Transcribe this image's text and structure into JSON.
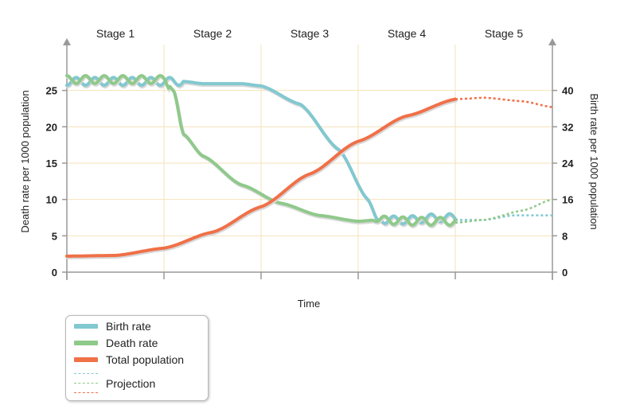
{
  "chart_data": {
    "type": "line",
    "stages": [
      "Stage 1",
      "Stage 2",
      "Stage 3",
      "Stage 4",
      "Stage 5"
    ],
    "xlabel": "Time",
    "ylabel_left": "Death rate per 1000 population",
    "ylabel_right": "Birth rate per 1000 population",
    "left_ticks": [
      "0",
      "5",
      "10",
      "15",
      "20",
      "25"
    ],
    "right_ticks": [
      "0",
      "8",
      "16",
      "24",
      "32",
      "40"
    ],
    "ylim_left": [
      0,
      30
    ],
    "ylim_right": [
      0,
      48
    ],
    "xlim": [
      0,
      5
    ],
    "grid": "vertical stage dividers and horizontal gridlines",
    "series": [
      {
        "name": "Birth rate",
        "axis": "right",
        "color": "#82c8d0",
        "wavy_until": 1.2,
        "x": [
          0,
          0.5,
          1,
          1.2,
          1.4,
          1.8,
          2.0,
          2.4,
          2.8,
          3.1,
          3.2,
          3.5,
          3.8,
          4.0
        ],
        "values": [
          42,
          42,
          42,
          42,
          41.5,
          41.5,
          41,
          37,
          27,
          16,
          11.5,
          11.5,
          12,
          12
        ],
        "wavy_from": 3.2,
        "projection": {
          "x": [
            4.0,
            4.3,
            4.6,
            5.0
          ],
          "values": [
            11.5,
            11.5,
            12.5,
            12.5
          ]
        }
      },
      {
        "name": "Death rate",
        "axis": "left",
        "color": "#8fc98a",
        "wavy_until": 1.05,
        "x": [
          0,
          0.5,
          1,
          1.1,
          1.2,
          1.4,
          1.8,
          2.2,
          2.6,
          3.0,
          3.2,
          3.6,
          4.0
        ],
        "values": [
          26.5,
          26.5,
          26.5,
          25,
          19,
          16,
          12,
          9.5,
          7.8,
          7,
          7.2,
          7,
          7
        ],
        "wavy_from": 3.15,
        "projection": {
          "x": [
            4.0,
            4.3,
            4.7,
            5.0
          ],
          "values": [
            6.8,
            7.2,
            8.5,
            10
          ]
        }
      },
      {
        "name": "Total population",
        "axis": "left",
        "color": "#f07048",
        "x": [
          0,
          0.5,
          1,
          1.5,
          2,
          2.5,
          3,
          3.5,
          4
        ],
        "values": [
          2.2,
          2.3,
          3.3,
          5.5,
          9,
          13.5,
          18,
          21.5,
          23.8
        ],
        "projection": {
          "x": [
            4.0,
            4.3,
            4.7,
            5.0
          ],
          "values": [
            23.8,
            24,
            23.5,
            22.7
          ]
        }
      }
    ]
  },
  "legend": {
    "items": [
      {
        "label": "Birth rate",
        "color": "#82c8d0"
      },
      {
        "label": "Death rate",
        "color": "#8fc98a"
      },
      {
        "label": "Total population",
        "color": "#f07048"
      }
    ],
    "projection_label": "Projection"
  }
}
